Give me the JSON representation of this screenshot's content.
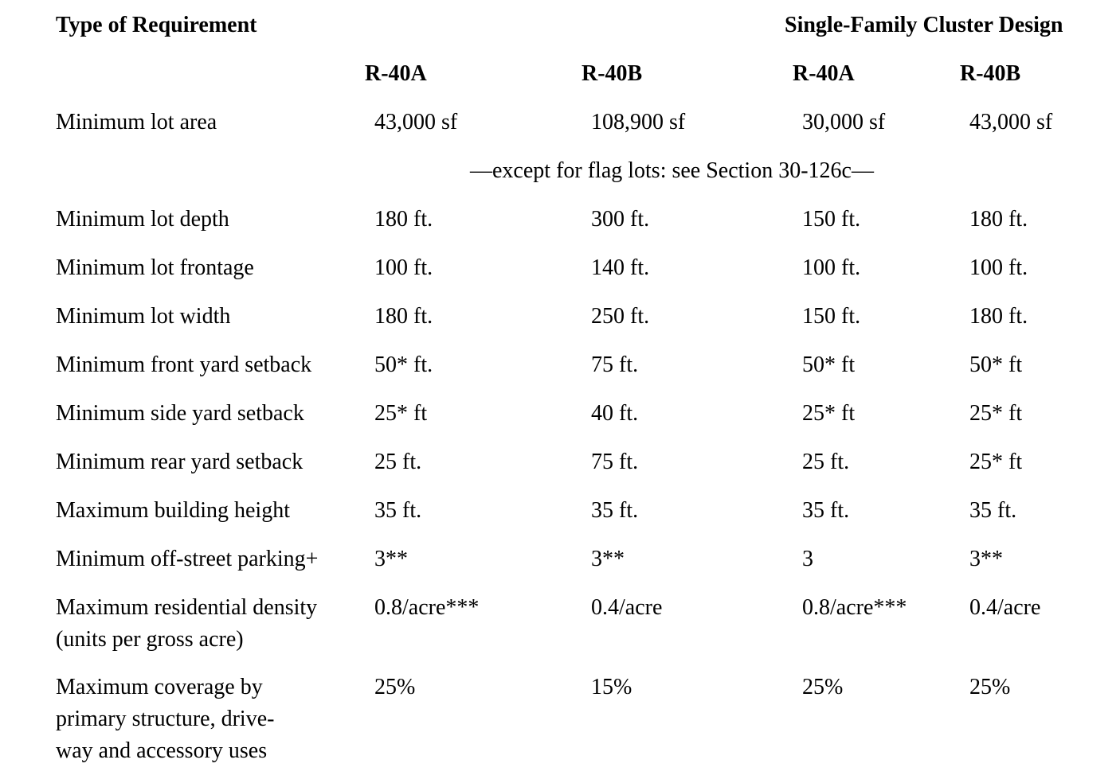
{
  "colors": {
    "text": "#000000",
    "background": "#ffffff"
  },
  "table": {
    "corner_header": "Type of Requirement",
    "group_header": "Single-Family Cluster Design",
    "column_headers": [
      "R-40A",
      "R-40B",
      "R-40A",
      "R-40B"
    ],
    "note": "—except for flag lots: see Section 30-126c—",
    "rows": [
      {
        "label": "Minimum lot area",
        "values": [
          "43,000 sf",
          "108,900 sf",
          "30,000 sf",
          "43,000 sf"
        ]
      },
      {
        "label": "Minimum lot depth",
        "values": [
          "180 ft.",
          "300 ft.",
          "150 ft.",
          "180 ft."
        ]
      },
      {
        "label": "Minimum lot frontage",
        "values": [
          "100 ft.",
          "140 ft.",
          "100 ft.",
          "100 ft."
        ]
      },
      {
        "label": "Minimum lot width",
        "values": [
          "180 ft.",
          "250 ft.",
          "150 ft.",
          "180 ft."
        ]
      },
      {
        "label": "Minimum front yard setback",
        "values": [
          "50* ft.",
          "75 ft.",
          "50* ft",
          "50* ft"
        ]
      },
      {
        "label": "Minimum side yard setback",
        "values": [
          "25* ft",
          "40 ft.",
          "25* ft",
          "25* ft"
        ]
      },
      {
        "label": "Minimum rear yard setback",
        "values": [
          "25 ft.",
          "75 ft.",
          "25 ft.",
          "25* ft"
        ]
      },
      {
        "label": "Maximum building height",
        "values": [
          "35 ft.",
          "35 ft.",
          "35 ft.",
          "35 ft."
        ]
      },
      {
        "label": "Minimum off-street parking+",
        "values": [
          "3**",
          "3**",
          "3",
          "3**"
        ]
      },
      {
        "label": "Maximum residential density\n(units per gross acre)",
        "values": [
          "0.8/acre***",
          "0.4/acre",
          "0.8/acre***",
          "0.4/acre"
        ]
      },
      {
        "label": "Maximum coverage by\nprimary structure, drive-\nway and accessory uses",
        "values": [
          "25%",
          "15%",
          "25%",
          "25%"
        ]
      }
    ]
  }
}
